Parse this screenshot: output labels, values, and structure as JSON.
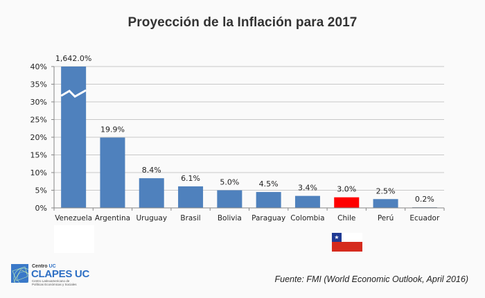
{
  "chart_data": {
    "type": "bar",
    "title": "Proyección de la Inflación para 2017",
    "xlabel": "",
    "ylabel": "",
    "ylim": [
      0,
      40
    ],
    "yticks": [
      "0%",
      "5%",
      "10%",
      "15%",
      "20%",
      "25%",
      "30%",
      "35%",
      "40%"
    ],
    "ytick_values": [
      0,
      5,
      10,
      15,
      20,
      25,
      30,
      35,
      40
    ],
    "grid": true,
    "categories": [
      "Venezuela",
      "Argentina",
      "Uruguay",
      "Brasil",
      "Bolivia",
      "Paraguay",
      "Colombia",
      "Chile",
      "Perú",
      "Ecuador"
    ],
    "values": [
      1642.0,
      19.9,
      8.4,
      6.1,
      5.0,
      4.5,
      3.4,
      3.0,
      2.5,
      0.2
    ],
    "data_labels": [
      "1,642.0%",
      "19.9%",
      "8.4%",
      "6.1%",
      "5.0%",
      "4.5%",
      "3.4%",
      "3.0%",
      "2.5%",
      "0.2%"
    ],
    "truncated_categories": [
      "Venezuela"
    ],
    "highlight_category": "Chile",
    "colors": {
      "bar": "#4f81bd",
      "highlight": "#ff0000",
      "last_bar": "#8497a8",
      "grid": "#c8c8c8",
      "axis": "#868686",
      "text": "#222222"
    }
  },
  "footer": {
    "source": "Fuente: FMI (World Economic Outlook, April 2016)",
    "logo": {
      "small": "Centro",
      "small_accent": "UC",
      "big": "CLAPES UC",
      "sub1": "Centro Latinoamericano de",
      "sub2": "Políticas Económicas y Sociales"
    },
    "flag_star": "★"
  }
}
